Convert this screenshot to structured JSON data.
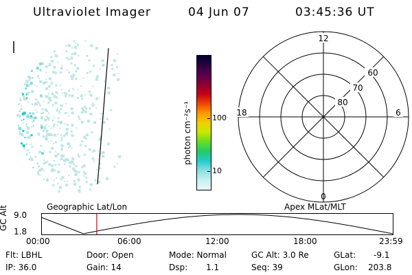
{
  "header": {
    "instrument": "Ultraviolet Imager",
    "date": "04 Jun 07",
    "time": "03:45:36 UT"
  },
  "colorbar": {
    "unit_label": "photon cm⁻²s⁻¹",
    "ticks": [
      {
        "value": "100",
        "level": 0.47
      },
      {
        "value": "10",
        "level": 0.86
      }
    ],
    "colors": [
      "#000033",
      "#2a0040",
      "#5a0050",
      "#8a0030",
      "#c80018",
      "#ee4400",
      "#ff9900",
      "#f0d000",
      "#c8e800",
      "#66dd22",
      "#22cc66",
      "#22cccc",
      "#88e0e0",
      "#c8f0f0",
      "#ebf8f8"
    ]
  },
  "polar_plot": {
    "mlt_labels": {
      "top": "12",
      "bottom": "0",
      "left": "18",
      "right": "6"
    },
    "lat_labels": [
      "60",
      "70",
      "80"
    ]
  },
  "timeline": {
    "y_axis_label": "GC Alt",
    "y_ticks": [
      "9.0",
      "1.8"
    ],
    "left_title": "Geographic Lat/Lon",
    "right_title": "Apex MLat/MLT",
    "x_ticks": [
      "00:00",
      "06:00",
      "12:00",
      "18:00",
      "23:59"
    ],
    "current_time_fraction": 0.158
  },
  "footer": {
    "row1": {
      "flt": "Flt: LBHL",
      "door": "Door: Open",
      "mode": "Mode: Normal",
      "gcalt": "GC Alt: 3.0 Re",
      "glat": "GLat:",
      "glat_value": "-9.1"
    },
    "row2": {
      "ip": "IP: 36.0",
      "gain": "Gain: 14",
      "dsp": "Dsp:",
      "dsp_value": "1.1",
      "seq": "Seq: 39",
      "glon": "GLon:",
      "glon_value": "203.8"
    }
  },
  "colors": {
    "cursor": "#dd0000",
    "speckle": "#bfe6e6",
    "speckle_dense": "#7fd9d9",
    "speckle_bright": "#22cccc"
  }
}
